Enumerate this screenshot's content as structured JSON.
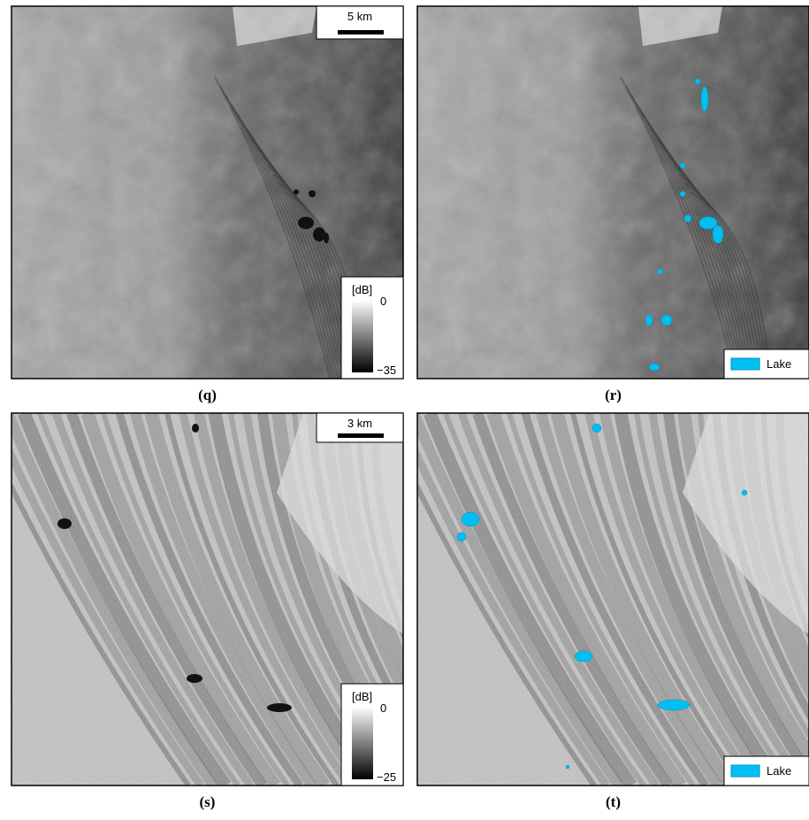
{
  "panels": [
    {
      "label": "(q)",
      "scale_bar": "5 km",
      "colorbar": {
        "unit": "[dB]",
        "max": "0",
        "min": "−35"
      }
    },
    {
      "label": "(r)",
      "legend": "Lake"
    },
    {
      "label": "(s)",
      "scale_bar": "3 km",
      "colorbar": {
        "unit": "[dB]",
        "max": "0",
        "min": "−25"
      }
    },
    {
      "label": "(t)",
      "legend": "Lake"
    }
  ]
}
